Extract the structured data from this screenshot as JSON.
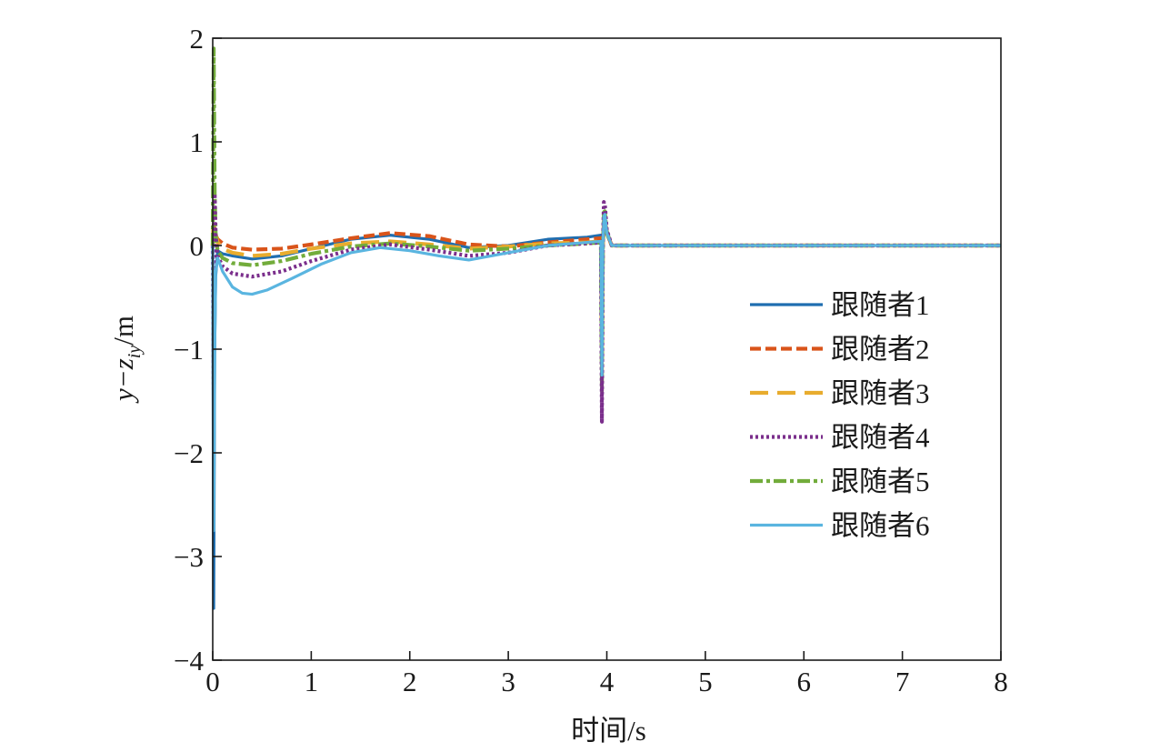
{
  "chart_data": {
    "type": "line",
    "title": "",
    "xlabel": "时间/s",
    "ylabel": "y−z",
    "ylabel_sub": "iy",
    "ylabel_unit": "/m",
    "xlim": [
      0,
      8
    ],
    "ylim": [
      -4,
      2
    ],
    "xticks": [
      0,
      1,
      2,
      3,
      4,
      5,
      6,
      7,
      8
    ],
    "yticks": [
      -4,
      -3,
      -2,
      -1,
      0,
      1,
      2
    ],
    "xtick_labels": [
      "0",
      "1",
      "2",
      "3",
      "4",
      "5",
      "6",
      "7",
      "8"
    ],
    "ytick_labels": [
      "−4",
      "−3",
      "−2",
      "−1",
      "0",
      "1",
      "2"
    ],
    "grid": false,
    "legend_position": "right",
    "series": [
      {
        "name": "跟随者1",
        "color": "#1f6eb0",
        "dash": "solid",
        "x": [
          0,
          0.01,
          0.02,
          0.03,
          0.05,
          0.1,
          0.2,
          0.4,
          0.7,
          1.0,
          1.4,
          1.8,
          2.2,
          2.6,
          3.0,
          3.4,
          3.8,
          3.94,
          3.95,
          3.96,
          3.97,
          3.98,
          4.0,
          4.05,
          4.1,
          5,
          6,
          7,
          8
        ],
        "y": [
          0.0,
          -3.5,
          -1.0,
          -0.3,
          -0.05,
          -0.08,
          -0.1,
          -0.13,
          -0.1,
          -0.03,
          0.06,
          0.1,
          0.06,
          -0.02,
          0.0,
          0.06,
          0.08,
          0.1,
          -1.05,
          0.0,
          0.28,
          0.3,
          0.15,
          0.0,
          0.0,
          0.0,
          0.0,
          0.0,
          0.0
        ]
      },
      {
        "name": "跟随者2",
        "color": "#d9541a",
        "dash": "12,5",
        "x": [
          0,
          0.01,
          0.02,
          0.05,
          0.1,
          0.2,
          0.4,
          0.7,
          1.0,
          1.4,
          1.8,
          2.2,
          2.6,
          3.0,
          3.4,
          3.8,
          3.94,
          3.95,
          3.96,
          3.97,
          3.98,
          4.0,
          4.05,
          4.1,
          5,
          6,
          7,
          8
        ],
        "y": [
          0.0,
          0.2,
          0.12,
          0.06,
          0.02,
          -0.02,
          -0.04,
          -0.03,
          0.01,
          0.07,
          0.12,
          0.09,
          0.01,
          -0.01,
          0.03,
          0.06,
          0.07,
          -0.9,
          0.0,
          0.25,
          0.27,
          0.12,
          0.0,
          0.0,
          0.0,
          0.0,
          0.0,
          0.0
        ]
      },
      {
        "name": "跟随者3",
        "color": "#e8ac2e",
        "dash": "20,10",
        "x": [
          0,
          0.01,
          0.02,
          0.05,
          0.1,
          0.2,
          0.4,
          0.7,
          1.0,
          1.4,
          1.8,
          2.2,
          2.6,
          3.0,
          3.4,
          3.8,
          3.94,
          3.95,
          3.96,
          3.97,
          3.98,
          4.0,
          4.05,
          4.1,
          5,
          6,
          7,
          8
        ],
        "y": [
          0.0,
          0.35,
          0.15,
          0.03,
          -0.03,
          -0.07,
          -0.1,
          -0.08,
          -0.03,
          0.02,
          0.04,
          0.01,
          -0.03,
          -0.01,
          0.02,
          0.03,
          0.04,
          -1.2,
          0.0,
          0.25,
          0.26,
          0.1,
          0.0,
          0.0,
          0.0,
          0.0,
          0.0,
          0.0
        ]
      },
      {
        "name": "跟随者4",
        "color": "#7b2f8c",
        "dash": "3,3",
        "x": [
          0,
          0.01,
          0.02,
          0.03,
          0.05,
          0.1,
          0.2,
          0.4,
          0.7,
          1.0,
          1.4,
          1.8,
          2.2,
          2.6,
          3.0,
          3.4,
          3.8,
          3.94,
          3.95,
          3.96,
          3.97,
          3.98,
          4.0,
          4.05,
          4.1,
          5,
          6,
          7,
          8
        ],
        "y": [
          0.0,
          -1.4,
          0.5,
          0.1,
          -0.1,
          -0.2,
          -0.27,
          -0.3,
          -0.25,
          -0.15,
          -0.04,
          0.01,
          -0.04,
          -0.1,
          -0.07,
          0.0,
          0.02,
          0.03,
          -1.7,
          0.0,
          0.42,
          0.4,
          0.15,
          0.0,
          0.0,
          0.0,
          0.0,
          0.0,
          0.0
        ]
      },
      {
        "name": "跟随者5",
        "color": "#72ac3b",
        "dash": "14,4,4,4",
        "x": [
          0,
          0.01,
          0.02,
          0.03,
          0.05,
          0.1,
          0.2,
          0.4,
          0.7,
          1.0,
          1.4,
          1.8,
          2.2,
          2.6,
          3.0,
          3.4,
          3.8,
          3.94,
          3.95,
          3.96,
          3.97,
          3.98,
          4.0,
          4.05,
          4.1,
          5,
          6,
          7,
          8
        ],
        "y": [
          0.0,
          1.9,
          0.5,
          0.1,
          -0.05,
          -0.12,
          -0.17,
          -0.19,
          -0.15,
          -0.08,
          -0.01,
          0.02,
          -0.01,
          -0.05,
          -0.03,
          0.0,
          0.02,
          0.03,
          -1.4,
          0.0,
          0.32,
          0.33,
          0.12,
          0.0,
          0.0,
          0.0,
          0.0,
          0.0,
          0.0
        ]
      },
      {
        "name": "跟随者6",
        "color": "#5ab5e0",
        "dash": "solid",
        "x": [
          0,
          0.01,
          0.02,
          0.03,
          0.05,
          0.1,
          0.2,
          0.3,
          0.4,
          0.55,
          0.8,
          1.1,
          1.4,
          1.7,
          2.0,
          2.3,
          2.6,
          3.0,
          3.4,
          3.8,
          3.94,
          3.95,
          3.96,
          3.97,
          3.98,
          4.0,
          4.05,
          4.1,
          5,
          6,
          7,
          8
        ],
        "y": [
          0.0,
          -2.75,
          -1.0,
          -0.25,
          -0.12,
          -0.25,
          -0.4,
          -0.46,
          -0.47,
          -0.43,
          -0.32,
          -0.18,
          -0.07,
          -0.02,
          -0.05,
          -0.1,
          -0.14,
          -0.07,
          0.0,
          0.03,
          0.04,
          -1.25,
          0.0,
          0.28,
          0.3,
          0.12,
          0.0,
          0.0,
          0.0,
          0.0,
          0.0,
          0.0
        ]
      }
    ]
  }
}
